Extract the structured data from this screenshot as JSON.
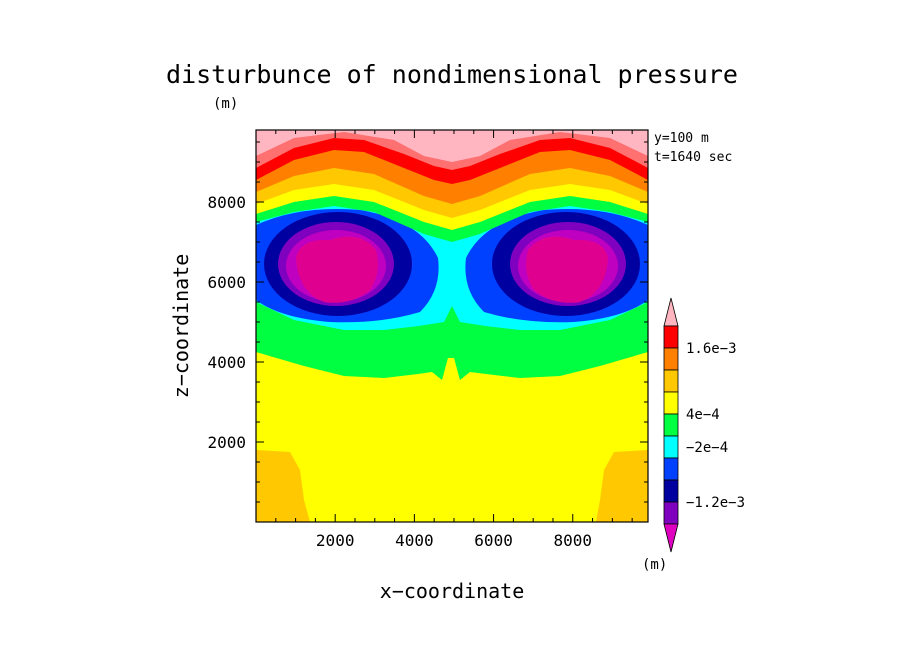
{
  "chart_data": {
    "type": "heatmap",
    "title": "disturbunce of nondimensional pressure",
    "units_top": "(m)",
    "xlabel": "x−coordinate",
    "ylabel": "z−coordinate",
    "xlim": [
      0,
      9900
    ],
    "ylim": [
      0,
      9800
    ],
    "xticks": [
      2000,
      4000,
      6000,
      8000
    ],
    "yticks": [
      2000,
      4000,
      6000,
      8000
    ],
    "xtick_labels": [
      "2000",
      "4000",
      "6000",
      "8000"
    ],
    "ytick_labels": [
      "2000",
      "4000",
      "6000",
      "8000"
    ],
    "info_lines": [
      "y=100  m",
      "t=1640 sec"
    ],
    "colorbar": {
      "units_label": "(m)",
      "levels": [
        "1.6e−3",
        "4e−4",
        "−2e−4",
        "−1.2e−3"
      ],
      "colors": [
        "#ffb6c1",
        "#ff0000",
        "#ff7f00",
        "#ffc800",
        "#ffff00",
        "#00ff40",
        "#00ffff",
        "#0040ff",
        "#0000a0",
        "#8000c0",
        "#e000c0"
      ]
    }
  }
}
